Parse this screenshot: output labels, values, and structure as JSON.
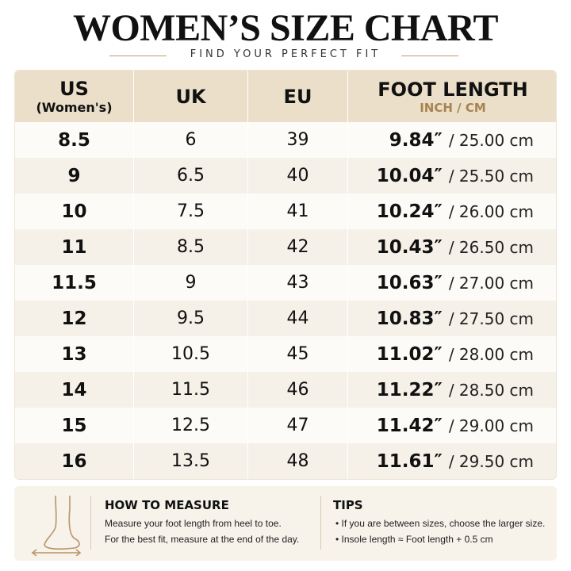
{
  "header": {
    "title": "WOMEN’S SIZE CHART",
    "subtitle": "FIND YOUR PERFECT FIT"
  },
  "table": {
    "columns": [
      {
        "label": "US",
        "sub": "(Women's)"
      },
      {
        "label": "UK"
      },
      {
        "label": "EU"
      },
      {
        "label": "FOOT LENGTH",
        "sub": "INCH / CM"
      }
    ],
    "rows": [
      [
        "8.5",
        "6",
        "39",
        "9.84″",
        "/ 25.00 cm"
      ],
      [
        "9",
        "6.5",
        "40",
        "10.04″",
        "/ 25.50 cm"
      ],
      [
        "10",
        "7.5",
        "41",
        "10.24″",
        "/ 26.00 cm"
      ],
      [
        "11",
        "8.5",
        "42",
        "10.43″",
        "/ 26.50 cm"
      ],
      [
        "11.5",
        "9",
        "43",
        "10.63″",
        "/ 27.00 cm"
      ],
      [
        "12",
        "9.5",
        "44",
        "10.83″",
        "/ 27.50 cm"
      ],
      [
        "13",
        "10.5",
        "45",
        "11.02″",
        "/ 28.00 cm"
      ],
      [
        "14",
        "11.5",
        "46",
        "11.22″",
        "/ 28.50 cm"
      ],
      [
        "15",
        "12.5",
        "47",
        "11.42″",
        "/ 29.00 cm"
      ],
      [
        "16",
        "13.5",
        "48",
        "11.61″",
        "/ 29.50 cm"
      ]
    ]
  },
  "measure": {
    "title": "HOW TO MEASURE",
    "lines": [
      "Measure your foot length from heel to toe.",
      "For the best fit, measure at the end of the day."
    ]
  },
  "tips": {
    "title": "TIPS",
    "items": [
      "If you are between sizes, choose the larger size.",
      "Insole length ≈ Foot length + 0.5 cm"
    ]
  }
}
